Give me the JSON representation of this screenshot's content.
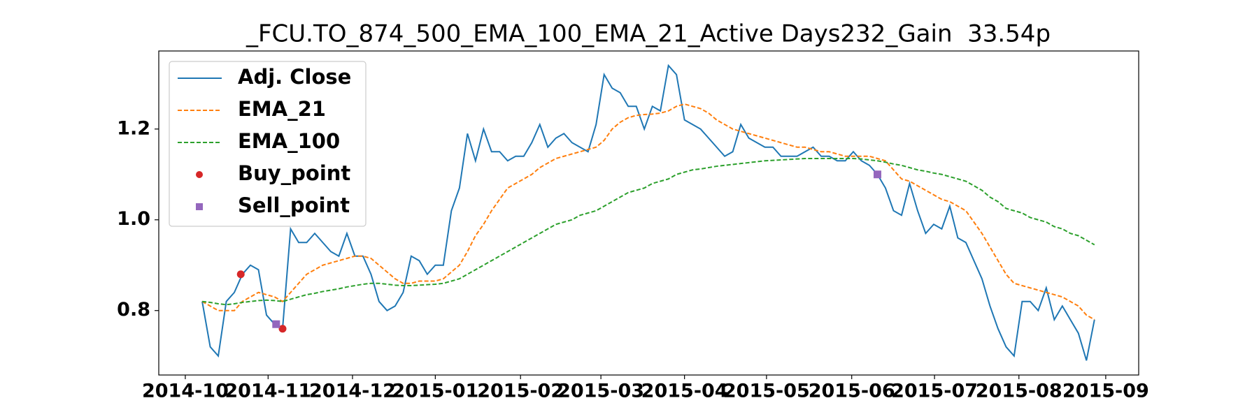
{
  "chart_data": {
    "type": "line",
    "title": "_FCU.TO_874_500_EMA_100_EMA_21_Active Days232_Gain  33.54p",
    "xlim": [
      -5.4,
      116.5
    ],
    "xticks": [
      {
        "value": -2.1,
        "label": "2014-10"
      },
      {
        "value": 8.2,
        "label": "2014-11"
      },
      {
        "value": 18.7,
        "label": "2014-12"
      },
      {
        "value": 29.0,
        "label": "2015-01"
      },
      {
        "value": 39.6,
        "label": "2015-02"
      },
      {
        "value": 49.6,
        "label": "2015-03"
      },
      {
        "value": 60.0,
        "label": "2015-04"
      },
      {
        "value": 70.2,
        "label": "2015-05"
      },
      {
        "value": 80.8,
        "label": "2015-06"
      },
      {
        "value": 91.1,
        "label": "2015-07"
      },
      {
        "value": 101.6,
        "label": "2015-08"
      },
      {
        "value": 112.4,
        "label": "2015-09"
      }
    ],
    "ylim": [
      0.658,
      1.372
    ],
    "yticks": [
      0.8,
      {
        "value": 1.0,
        "label": "1.0"
      },
      1.2
    ],
    "grid": false,
    "legend": "upper left",
    "series": [
      {
        "name": "Adj. Close",
        "color": "#1f77b4",
        "style": "solid",
        "values": [
          0.82,
          0.72,
          0.7,
          0.82,
          0.84,
          0.88,
          0.9,
          0.89,
          0.79,
          0.77,
          0.76,
          0.98,
          0.95,
          0.95,
          0.97,
          0.95,
          0.93,
          0.92,
          0.97,
          0.92,
          0.92,
          0.88,
          0.82,
          0.8,
          0.81,
          0.84,
          0.92,
          0.91,
          0.88,
          0.9,
          0.9,
          1.02,
          1.07,
          1.19,
          1.13,
          1.2,
          1.15,
          1.15,
          1.13,
          1.14,
          1.14,
          1.17,
          1.21,
          1.16,
          1.18,
          1.19,
          1.17,
          1.16,
          1.15,
          1.21,
          1.32,
          1.29,
          1.28,
          1.25,
          1.25,
          1.2,
          1.25,
          1.24,
          1.34,
          1.32,
          1.22,
          1.21,
          1.2,
          1.18,
          1.16,
          1.14,
          1.15,
          1.21,
          1.18,
          1.17,
          1.16,
          1.16,
          1.14,
          1.14,
          1.14,
          1.15,
          1.16,
          1.14,
          1.14,
          1.13,
          1.13,
          1.15,
          1.13,
          1.12,
          1.1,
          1.07,
          1.02,
          1.01,
          1.08,
          1.02,
          0.97,
          0.99,
          0.98,
          1.03,
          0.96,
          0.95,
          0.91,
          0.87,
          0.81,
          0.76,
          0.72,
          0.7,
          0.82,
          0.82,
          0.8,
          0.85,
          0.78,
          0.81,
          0.78,
          0.75,
          0.69,
          0.78
        ]
      },
      {
        "name": "EMA_21",
        "color": "#ff7f0e",
        "style": "dashed",
        "values": [
          0.82,
          0.81,
          0.8,
          0.8,
          0.8,
          0.82,
          0.83,
          0.84,
          0.835,
          0.83,
          0.82,
          0.84,
          0.86,
          0.88,
          0.89,
          0.9,
          0.905,
          0.91,
          0.915,
          0.92,
          0.92,
          0.915,
          0.9,
          0.885,
          0.87,
          0.86,
          0.86,
          0.865,
          0.865,
          0.865,
          0.87,
          0.885,
          0.9,
          0.93,
          0.965,
          0.99,
          1.02,
          1.045,
          1.07,
          1.08,
          1.09,
          1.1,
          1.115,
          1.125,
          1.135,
          1.14,
          1.145,
          1.15,
          1.155,
          1.16,
          1.175,
          1.2,
          1.215,
          1.225,
          1.23,
          1.232,
          1.233,
          1.235,
          1.24,
          1.25,
          1.255,
          1.25,
          1.245,
          1.235,
          1.22,
          1.21,
          1.2,
          1.195,
          1.19,
          1.185,
          1.18,
          1.175,
          1.17,
          1.165,
          1.16,
          1.16,
          1.155,
          1.15,
          1.15,
          1.145,
          1.14,
          1.14,
          1.14,
          1.14,
          1.135,
          1.13,
          1.11,
          1.09,
          1.085,
          1.075,
          1.065,
          1.055,
          1.045,
          1.04,
          1.03,
          1.02,
          0.995,
          0.97,
          0.94,
          0.91,
          0.88,
          0.86,
          0.855,
          0.85,
          0.845,
          0.84,
          0.835,
          0.83,
          0.82,
          0.81,
          0.79,
          0.78
        ]
      },
      {
        "name": "EMA_100",
        "color": "#2ca02c",
        "style": "dashed",
        "values": [
          0.82,
          0.818,
          0.815,
          0.813,
          0.815,
          0.818,
          0.82,
          0.822,
          0.823,
          0.822,
          0.82,
          0.825,
          0.83,
          0.835,
          0.838,
          0.842,
          0.845,
          0.848,
          0.852,
          0.855,
          0.858,
          0.86,
          0.86,
          0.858,
          0.856,
          0.855,
          0.855,
          0.856,
          0.857,
          0.858,
          0.86,
          0.865,
          0.87,
          0.88,
          0.89,
          0.9,
          0.91,
          0.92,
          0.93,
          0.94,
          0.95,
          0.96,
          0.97,
          0.98,
          0.99,
          0.995,
          1.0,
          1.01,
          1.015,
          1.02,
          1.03,
          1.04,
          1.05,
          1.06,
          1.065,
          1.07,
          1.08,
          1.085,
          1.09,
          1.1,
          1.105,
          1.11,
          1.112,
          1.115,
          1.118,
          1.12,
          1.122,
          1.124,
          1.126,
          1.128,
          1.13,
          1.131,
          1.132,
          1.133,
          1.134,
          1.135,
          1.135,
          1.135,
          1.135,
          1.135,
          1.135,
          1.135,
          1.134,
          1.132,
          1.13,
          1.127,
          1.123,
          1.12,
          1.115,
          1.11,
          1.107,
          1.103,
          1.1,
          1.095,
          1.09,
          1.085,
          1.075,
          1.065,
          1.05,
          1.04,
          1.025,
          1.02,
          1.015,
          1.005,
          1.0,
          0.995,
          0.985,
          0.98,
          0.97,
          0.965,
          0.955,
          0.945
        ]
      },
      {
        "name": "Buy_point",
        "color": "#d62728",
        "marker": "circle",
        "x": [
          4.8,
          10
        ],
        "values": [
          0.88,
          0.76
        ]
      },
      {
        "name": "Sell_point",
        "color": "#9467bd",
        "marker": "square",
        "x": [
          9.2,
          84
        ],
        "values": [
          0.77,
          1.1
        ]
      }
    ]
  }
}
